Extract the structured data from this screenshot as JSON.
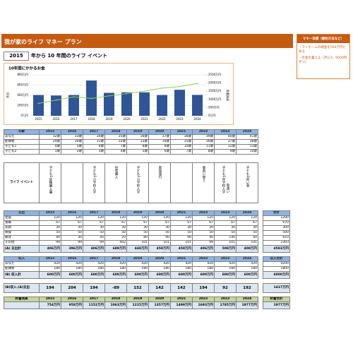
{
  "header": {
    "title": "我が家のライフ マネー プラン",
    "note_title": "マネー目標（節約方法など）",
    "note_lines": [
      "・マイホームの頭金を500万円ためる",
      "・年金を蓄える（月に3、0000円ずつ）"
    ]
  },
  "period": {
    "start_year": "2015",
    "text": "年から 10 年間のライフ イベント"
  },
  "years": [
    "2015",
    "2016",
    "2017",
    "2018",
    "2019",
    "2020",
    "2021",
    "2022",
    "2023",
    "2024"
  ],
  "chart": {
    "title": "10年間にかかるお金",
    "bars": {
      "color": "#2f5597",
      "values": [
        406,
        396,
        406,
        689,
        448,
        458,
        458,
        406,
        508,
        408
      ]
    },
    "line": {
      "color": "#92d050",
      "values": [
        754,
        958,
        1152,
        1063,
        1215,
        1357,
        1499,
        1693,
        1785,
        1977
      ]
    },
    "ylim": [
      0,
      800
    ],
    "yticks": [
      {
        "value": 0,
        "label": "0万円"
      },
      {
        "value": 200,
        "label": "200万円"
      },
      {
        "value": 400,
        "label": "400万円"
      },
      {
        "value": 600,
        "label": "600万円"
      },
      {
        "value": 800,
        "label": "800万円"
      }
    ],
    "y2lim": [
      0,
      2500
    ],
    "y2ticks": [
      {
        "value": 0,
        "label": "0万円"
      },
      {
        "value": 500,
        "label": "500万円"
      },
      {
        "value": 1000,
        "label": "1000万円"
      },
      {
        "value": 1500,
        "label": "1500万円"
      },
      {
        "value": 2000,
        "label": "2000万円"
      },
      {
        "value": 2500,
        "label": "2500万円"
      }
    ],
    "y_label": "支出",
    "y2_label": "貯蓄残高"
  },
  "ages": {
    "label": "年齢",
    "rows": [
      {
        "name": "あなた",
        "values": [
          "32歳",
          "33歳",
          "34歳",
          "35歳",
          "36歳",
          "37歳",
          "38歳",
          "39歳",
          "40歳",
          "41歳"
        ]
      },
      {
        "name": "配偶者",
        "values": [
          "29歳",
          "30歳",
          "31歳",
          "32歳",
          "33歳",
          "34歳",
          "35歳",
          "36歳",
          "37歳",
          "38歳"
        ]
      },
      {
        "name": "子ども1",
        "values": [
          "4歳",
          "5歳",
          "6歳",
          "7歳",
          "8歳",
          "9歳",
          "10歳",
          "11歳",
          "12歳",
          "13歳"
        ]
      },
      {
        "name": "子ども2",
        "values": [
          "1歳",
          "2歳",
          "3歳",
          "4歳",
          "5歳",
          "6歳",
          "7歳",
          "8歳",
          "9歳",
          "10歳"
        ]
      }
    ]
  },
  "events": {
    "label": "ライフ イベント",
    "items": [
      [
        "子ども1幼稚園入園"
      ],
      [],
      [
        "子ども1小学校入学"
      ],
      [
        "住宅購入"
      ],
      [
        "子ども2小学校入学"
      ],
      [
        "家族旅行"
      ],
      [],
      [
        "車買い替え"
      ],
      [
        "子ども1中学校入学",
        "塾通い"
      ],
      [
        "子ども2習い事"
      ]
    ]
  },
  "expenses": {
    "label": "支出",
    "rows": [
      {
        "name": "住居",
        "values": [
          120,
          120,
          120,
          120,
          120,
          120,
          120,
          120,
          120,
          120
        ]
      },
      {
        "name": "食費",
        "values": [
          67,
          67,
          67,
          67,
          67,
          67,
          67,
          67,
          67,
          67
        ]
      },
      {
        "name": "光熱",
        "values": [
          30,
          30,
          30,
          30,
          30,
          30,
          30,
          30,
          30,
          30
        ]
      },
      {
        "name": "保険",
        "values": [
          50,
          50,
          50,
          50,
          50,
          50,
          50,
          50,
          50,
          50
        ]
      },
      {
        "name": "教育",
        "values": [
          40,
          30,
          40,
          20,
          80,
          90,
          90,
          40,
          140,
          40
        ]
      },
      {
        "name": "その他",
        "values": [
          99,
          99,
          99,
          402,
          101,
          101,
          101,
          99,
          101,
          101
        ]
      }
    ],
    "total": {
      "name": "(A) 支出計",
      "values": [
        "406万円",
        "396万円",
        "406万円",
        "689万円",
        "448万円",
        "458万円",
        "458万円",
        "406万円",
        "508万円",
        "408万円"
      ]
    },
    "sum_label": "合計",
    "sums": [
      1200,
      670,
      300,
      500,
      610,
      1303
    ],
    "total_sum": "4583万円"
  },
  "income": {
    "label": "収入",
    "rows": [
      {
        "name": "あなた",
        "values": [
          420,
          420,
          420,
          420,
          420,
          420,
          420,
          420,
          420,
          420
        ]
      },
      {
        "name": "配偶者",
        "values": [
          180,
          180,
          180,
          180,
          180,
          180,
          180,
          180,
          180,
          180
        ]
      }
    ],
    "total": {
      "name": "(B) 収入計",
      "values": [
        "600万円",
        "600万円",
        "600万円",
        "600万円",
        "600万円",
        "600万円",
        "600万円",
        "600万円",
        "600万円",
        "600万円"
      ]
    },
    "sum_label": "収入合計",
    "sums": [
      4200,
      1800
    ],
    "total_sum": "6000万円"
  },
  "diff": {
    "name": "(B)収入-(A)支出",
    "values": [
      194,
      204,
      194,
      -89,
      152,
      142,
      142,
      194,
      92,
      192
    ],
    "total": "1417万円"
  },
  "savings": {
    "label": "貯蓄残高",
    "values": [
      "754万円",
      "958万円",
      "1152万円",
      "1063万円",
      "1215万円",
      "1357万円",
      "1499万円",
      "1693万円",
      "1785万円",
      "1977万円"
    ],
    "sum_label": "貯蓄合計",
    "total": "1977万円"
  }
}
